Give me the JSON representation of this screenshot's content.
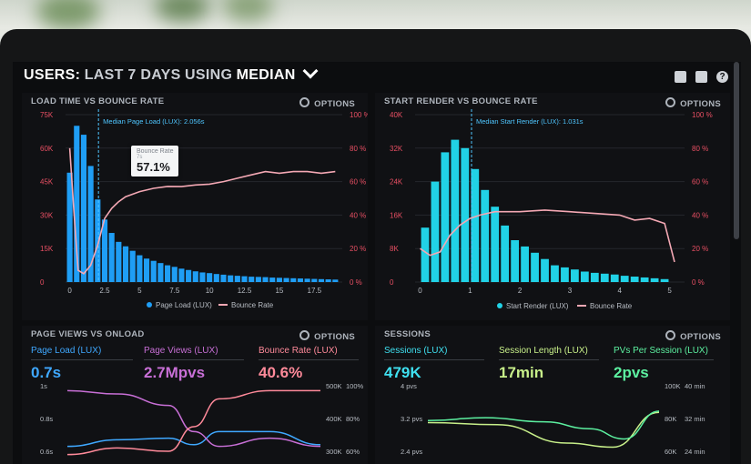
{
  "dashboard": {
    "title_prefix": "USERS:",
    "title_range": "LAST 7 DAYS",
    "title_using": "USING",
    "title_stat": "MEDIAN",
    "icons": [
      "monitor-icon",
      "export-icon",
      "help-icon"
    ]
  },
  "options_label": "OPTIONS",
  "load_time_panel": {
    "title": "LOAD TIME VS BOUNCE RATE",
    "median_label": "Median Page Load (LUX): 2.056s",
    "tooltip": {
      "label": "Bounce Rate",
      "sub": "7s",
      "value": "57.1%"
    },
    "legend": [
      "Page Load (LUX)",
      "Bounce Rate"
    ]
  },
  "start_render_panel": {
    "title": "START RENDER VS BOUNCE RATE",
    "median_label": "Median Start Render (LUX): 1.031s",
    "legend": [
      "Start Render (LUX)",
      "Bounce Rate"
    ]
  },
  "page_views_panel": {
    "title": "PAGE VIEWS VS ONLOAD",
    "metrics": [
      {
        "label": "Page Load (LUX)",
        "value": "0.7s",
        "color": "#3fa8ff"
      },
      {
        "label": "Page Views (LUX)",
        "value": "2.7Mpvs",
        "color": "#c86fd6"
      },
      {
        "label": "Bounce Rate (LUX)",
        "value": "40.6%",
        "color": "#ff8a9a"
      }
    ]
  },
  "sessions_panel": {
    "title": "SESSIONS",
    "metrics": [
      {
        "label": "Sessions (LUX)",
        "value": "479K",
        "color": "#3fe0f0"
      },
      {
        "label": "Session Length (LUX)",
        "value": "17min",
        "color": "#c8f08a"
      },
      {
        "label": "PVs Per Session (LUX)",
        "value": "2pvs",
        "color": "#5cf0a0"
      }
    ]
  },
  "chart_data": [
    {
      "type": "bar",
      "title": "LOAD TIME VS BOUNCE RATE",
      "x_ticks": [
        "0",
        "2.5",
        "5",
        "7.5",
        "10",
        "12.5",
        "15",
        "17.5"
      ],
      "xlim": [
        -0.3,
        19.5
      ],
      "y_ticks_left": [
        "0",
        "15K",
        "30K",
        "45K",
        "60K",
        "75K"
      ],
      "ylim_left": [
        0,
        75000
      ],
      "y_ticks_right": [
        "0 %",
        "20 %",
        "40 %",
        "60 %",
        "80 %",
        "100 %"
      ],
      "ylim_right": [
        0,
        100
      ],
      "median_x": 2.056,
      "bar_color": "#1f9ef5",
      "line_color": "#f4a8b4",
      "series": [
        {
          "name": "Page Load (LUX)",
          "x": [
            0,
            0.5,
            1,
            1.5,
            2,
            2.5,
            3,
            3.5,
            4,
            4.5,
            5,
            5.5,
            6,
            6.5,
            7,
            7.5,
            8,
            8.5,
            9,
            9.5,
            10,
            10.5,
            11,
            11.5,
            12,
            12.5,
            13,
            13.5,
            14,
            14.5,
            15,
            15.5,
            16,
            16.5,
            17,
            17.5,
            18,
            18.5,
            19
          ],
          "values": [
            49000,
            70000,
            66000,
            52000,
            37000,
            28000,
            22000,
            18000,
            16000,
            14000,
            12000,
            10500,
            9500,
            8500,
            7500,
            6800,
            6000,
            5400,
            4800,
            4300,
            4000,
            3600,
            3300,
            3000,
            2800,
            2600,
            2400,
            2300,
            2200,
            2000,
            1900,
            1800,
            1700,
            1600,
            1500,
            1400,
            1300,
            1200,
            1100
          ]
        },
        {
          "name": "Bounce Rate",
          "x": [
            0,
            0.3,
            0.6,
            1,
            1.5,
            2,
            2.5,
            3,
            3.5,
            4,
            5,
            6,
            7,
            8,
            9,
            10,
            11,
            12,
            13,
            14,
            15,
            16,
            17,
            18,
            19
          ],
          "values": [
            80,
            42,
            7,
            5,
            10,
            22,
            38,
            44,
            48,
            51,
            54,
            56,
            57.1,
            57,
            58,
            58.5,
            60,
            62,
            64,
            66,
            65,
            66,
            66,
            65,
            66
          ]
        }
      ]
    },
    {
      "type": "bar",
      "title": "START RENDER VS BOUNCE RATE",
      "x_ticks": [
        "0",
        "1",
        "2",
        "3",
        "4",
        "5"
      ],
      "xlim": [
        -0.1,
        5.3
      ],
      "y_ticks_left": [
        "0",
        "8K",
        "16K",
        "24K",
        "32K",
        "40K"
      ],
      "ylim_left": [
        0,
        40000
      ],
      "y_ticks_right": [
        "0 %",
        "20 %",
        "40 %",
        "60 %",
        "80 %",
        "100 %"
      ],
      "ylim_right": [
        0,
        100
      ],
      "median_x": 1.031,
      "bar_color": "#21d2e6",
      "line_color": "#f4a8b4",
      "series": [
        {
          "name": "Start Render (LUX)",
          "x": [
            0.1,
            0.3,
            0.5,
            0.7,
            0.9,
            1.1,
            1.3,
            1.5,
            1.7,
            1.9,
            2.1,
            2.3,
            2.5,
            2.7,
            2.9,
            3.1,
            3.3,
            3.5,
            3.7,
            3.9,
            4.1,
            4.3,
            4.5,
            4.7,
            4.9
          ],
          "values": [
            13000,
            24000,
            31000,
            34000,
            32000,
            27000,
            22000,
            18000,
            13500,
            10000,
            8500,
            7000,
            5500,
            4000,
            3500,
            3000,
            2500,
            2200,
            2000,
            1800,
            1500,
            1300,
            1100,
            900,
            700
          ]
        },
        {
          "name": "Bounce Rate",
          "x": [
            0,
            0.2,
            0.4,
            0.6,
            0.8,
            1,
            1.2,
            1.5,
            2,
            2.5,
            3,
            3.5,
            4,
            4.3,
            4.6,
            4.9,
            5.1
          ],
          "values": [
            20,
            16,
            18,
            28,
            34,
            38,
            40,
            42,
            42,
            43,
            42,
            41,
            40,
            37,
            38,
            35,
            12
          ]
        }
      ]
    },
    {
      "type": "line",
      "title": "PAGE VIEWS VS ONLOAD",
      "y_ticks_left": [
        "0.6s",
        "0.8s",
        "1s"
      ],
      "y_ticks_right_a": [
        "300K",
        "400K",
        "500K"
      ],
      "y_ticks_right_b": [
        "60%",
        "80%",
        "100%"
      ],
      "series": [
        {
          "name": "Page Load (LUX)",
          "color": "#3fa8ff",
          "x": [
            0,
            0.2,
            0.4,
            0.5,
            0.6,
            0.8,
            1
          ],
          "values": [
            0.63,
            0.67,
            0.68,
            0.64,
            0.72,
            0.72,
            0.64
          ]
        },
        {
          "name": "Page Views (LUX)",
          "color": "#c86fd6",
          "x": [
            0,
            0.2,
            0.4,
            0.5,
            0.6,
            0.8,
            1
          ],
          "values": [
            0.97,
            0.95,
            0.88,
            0.72,
            0.63,
            0.68,
            0.63
          ]
        },
        {
          "name": "Bounce Rate (LUX)",
          "color": "#ff8a9a",
          "x": [
            0,
            0.2,
            0.4,
            0.5,
            0.6,
            0.8,
            1
          ],
          "values": [
            0.58,
            0.62,
            0.6,
            0.75,
            0.92,
            0.97,
            0.97
          ]
        }
      ]
    },
    {
      "type": "line",
      "title": "SESSIONS",
      "y_ticks_left": [
        "2.4 pvs",
        "3.2 pvs",
        "4 pvs"
      ],
      "y_ticks_right_a": [
        "60K",
        "80K",
        "100K"
      ],
      "y_ticks_right_b": [
        "24 min",
        "32 min",
        "40 min"
      ],
      "series": [
        {
          "name": "Session Length (LUX)",
          "color": "#c8f08a",
          "x": [
            0,
            0.3,
            0.6,
            0.8,
            1
          ],
          "values": [
            3.1,
            3.05,
            2.6,
            2.5,
            3.35
          ]
        },
        {
          "name": "PVs Per Session (LUX)",
          "color": "#5cf0a0",
          "x": [
            0,
            0.25,
            0.5,
            0.7,
            0.85,
            1
          ],
          "values": [
            3.15,
            3.22,
            3.12,
            2.95,
            2.7,
            3.38
          ]
        }
      ]
    }
  ]
}
